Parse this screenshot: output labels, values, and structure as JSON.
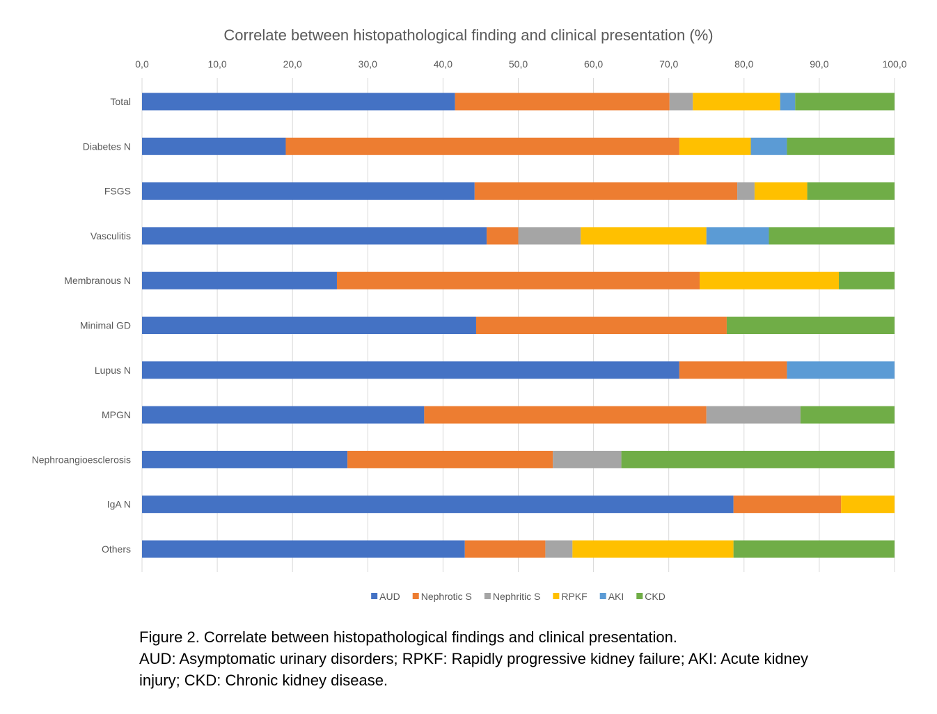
{
  "chart_data": {
    "type": "bar",
    "orientation": "horizontal",
    "stacked": true,
    "title": "Correlate between histopathological finding and clinical presentation (%)",
    "xlim": [
      0,
      100
    ],
    "x_ticks": [
      "0,0",
      "10,0",
      "20,0",
      "30,0",
      "40,0",
      "50,0",
      "60,0",
      "70,0",
      "80,0",
      "90,0",
      "100,0"
    ],
    "x_axis_position": "top",
    "grid": true,
    "legend_position": "bottom",
    "categories": [
      "Total",
      "Diabetes N",
      "FSGS",
      "Vasculitis",
      "Membranous N",
      "Minimal GD",
      "Lupus N",
      "MPGN",
      "Nephroangioesclerosis",
      "IgA N",
      "Others"
    ],
    "series": [
      {
        "name": "AUD",
        "color": "#4472C4",
        "values": [
          41.6,
          19.1,
          44.2,
          45.8,
          25.9,
          44.4,
          71.4,
          37.5,
          27.3,
          78.6,
          42.9
        ]
      },
      {
        "name": "Nephrotic S",
        "color": "#ED7D31",
        "values": [
          28.5,
          52.3,
          34.9,
          4.2,
          48.2,
          33.3,
          14.3,
          37.5,
          27.3,
          14.3,
          10.7
        ]
      },
      {
        "name": "Nephritic S",
        "color": "#A5A5A5",
        "values": [
          3.1,
          0,
          2.3,
          8.3,
          0,
          0,
          0,
          12.5,
          9.1,
          0,
          3.6
        ]
      },
      {
        "name": "RPKF",
        "color": "#FFC000",
        "values": [
          11.6,
          9.5,
          7.0,
          16.7,
          18.5,
          0,
          0,
          0,
          0,
          7.1,
          21.4
        ]
      },
      {
        "name": "AKI",
        "color": "#5B9BD5",
        "values": [
          2.0,
          4.8,
          0,
          8.3,
          0,
          0,
          14.3,
          0,
          0,
          0,
          0
        ]
      },
      {
        "name": "CKD",
        "color": "#70AD47",
        "values": [
          13.2,
          14.3,
          11.6,
          16.7,
          7.4,
          22.3,
          0,
          12.5,
          36.3,
          0,
          21.4
        ]
      }
    ]
  },
  "caption": {
    "line1": "Figure 2. Correlate between histopathological findings and clinical presentation.",
    "line2": "AUD: Asymptomatic urinary disorders; RPKF: Rapidly progressive kidney failure; AKI: Acute kidney",
    "line3": "injury; CKD: Chronic kidney disease."
  }
}
